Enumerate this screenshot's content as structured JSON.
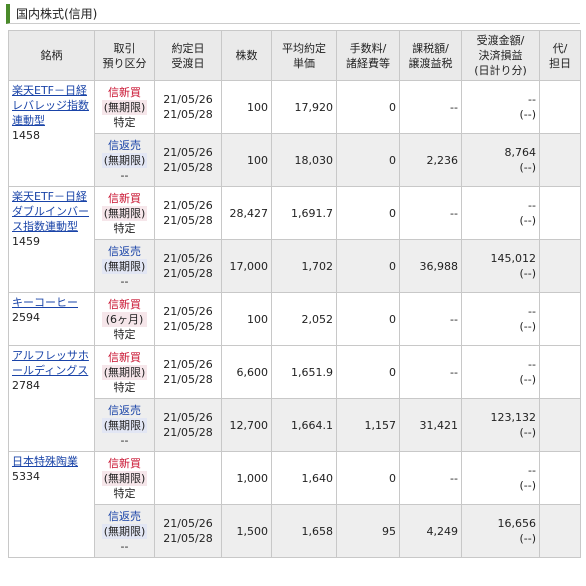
{
  "title": "国内株式(信用)",
  "table": {
    "headers": [
      [
        "銘柄"
      ],
      [
        "取引",
        "預り区分"
      ],
      [
        "約定日",
        "受渡日"
      ],
      [
        "株数"
      ],
      [
        "平均約定",
        "単価"
      ],
      [
        "手数料/",
        "諸経費等"
      ],
      [
        "課税額/",
        "譲渡益税"
      ],
      [
        "受渡金額/",
        "決済損益",
        "(日計り分)"
      ],
      [
        "代/",
        "担日"
      ]
    ],
    "groups": [
      {
        "name": "楽天ETF－日経レバレッジ指数連動型",
        "code": "1458",
        "rows": [
          {
            "trade": [
              "信新買",
              "(無期限)",
              "特定"
            ],
            "dates": [
              "21/05/26",
              "21/05/28"
            ],
            "shares": "100",
            "price": "17,920",
            "fee": "0",
            "tax": "--",
            "amount": [
              "--",
              "(--)"
            ]
          },
          {
            "trade": [
              "信返売",
              "(無期限)",
              "--"
            ],
            "dates": [
              "21/05/26",
              "21/05/28"
            ],
            "shares": "100",
            "price": "18,030",
            "fee": "0",
            "tax": "2,236",
            "amount": [
              "8,764",
              "(--)"
            ]
          }
        ]
      },
      {
        "name": "楽天ETF－日経ダブルインバース指数連動型",
        "code": "1459",
        "rows": [
          {
            "trade": [
              "信新買",
              "(無期限)",
              "特定"
            ],
            "dates": [
              "21/05/26",
              "21/05/28"
            ],
            "shares": "28,427",
            "price": "1,691.7",
            "fee": "0",
            "tax": "--",
            "amount": [
              "--",
              "(--)"
            ]
          },
          {
            "trade": [
              "信返売",
              "(無期限)",
              "--"
            ],
            "dates": [
              "21/05/26",
              "21/05/28"
            ],
            "shares": "17,000",
            "price": "1,702",
            "fee": "0",
            "tax": "36,988",
            "amount": [
              "145,012",
              "(--)"
            ]
          }
        ]
      },
      {
        "name": "キーコーヒー",
        "code": "2594",
        "rows": [
          {
            "trade": [
              "信新買",
              "(6ヶ月)",
              "特定"
            ],
            "dates": [
              "21/05/26",
              "21/05/28"
            ],
            "shares": "100",
            "price": "2,052",
            "fee": "0",
            "tax": "--",
            "amount": [
              "--",
              "(--)"
            ]
          }
        ]
      },
      {
        "name": "アルフレッサホールディングス",
        "code": "2784",
        "rows": [
          {
            "trade": [
              "信新買",
              "(無期限)",
              "特定"
            ],
            "dates": [
              "21/05/26",
              "21/05/28"
            ],
            "shares": "6,600",
            "price": "1,651.9",
            "fee": "0",
            "tax": "--",
            "amount": [
              "--",
              "(--)"
            ]
          },
          {
            "trade": [
              "信返売",
              "(無期限)",
              "--"
            ],
            "dates": [
              "21/05/26",
              "21/05/28"
            ],
            "shares": "12,700",
            "price": "1,664.1",
            "fee": "1,157",
            "tax": "31,421",
            "amount": [
              "123,132",
              "(--)"
            ]
          }
        ]
      },
      {
        "name": "日本特殊陶業",
        "code": "5334",
        "rows": [
          {
            "trade": [
              "信新買",
              "(無期限)",
              "特定"
            ],
            "dates": [],
            "shares": "1,000",
            "price": "1,640",
            "fee": "0",
            "tax": "--",
            "amount": [
              "--",
              "(--)"
            ]
          },
          {
            "trade": [
              "信返売",
              "(無期限)",
              "--"
            ],
            "dates": [
              "21/05/26",
              "21/05/28"
            ],
            "shares": "1,500",
            "price": "1,658",
            "fee": "95",
            "tax": "4,249",
            "amount": [
              "16,656",
              "(--)"
            ]
          }
        ]
      }
    ]
  }
}
